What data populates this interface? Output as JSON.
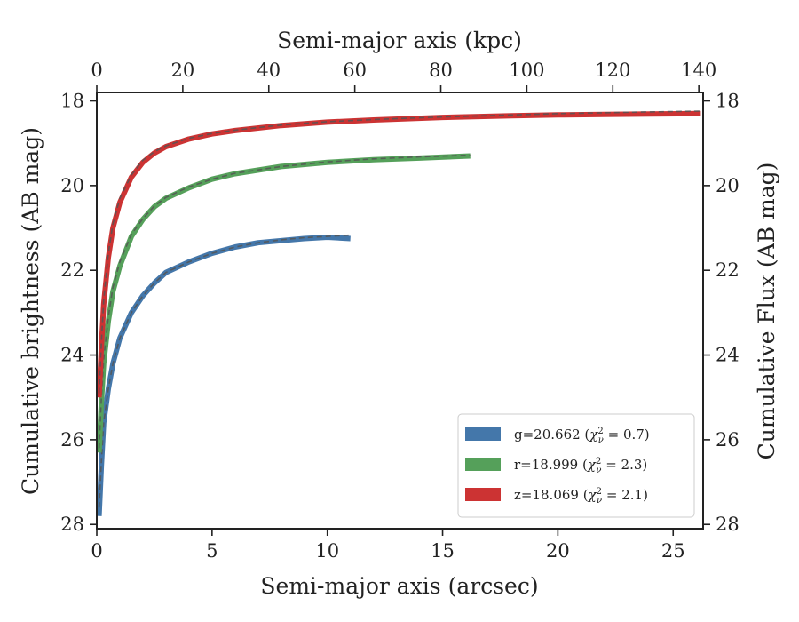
{
  "chart_data": {
    "type": "line",
    "xlabel": "Semi-major axis (arcsec)",
    "ylabel": "Cumulative brightness (AB mag)",
    "top_xlabel": "Semi-major axis (kpc)",
    "right_ylabel": "Cumulative Flux (AB mag)",
    "xlim": [
      0,
      26.3
    ],
    "ylim": [
      28.1,
      17.8
    ],
    "y_inverted": true,
    "top_xlim": [
      0,
      141
    ],
    "xticks": [
      0,
      5,
      10,
      15,
      20,
      25
    ],
    "yticks": [
      18,
      20,
      22,
      24,
      26,
      28
    ],
    "top_xticks": [
      0,
      20,
      40,
      60,
      80,
      100,
      120,
      140
    ],
    "grid": false,
    "legend_position": "lower right",
    "series": [
      {
        "name": "g=20.662 ($\\chi^2_\\nu = 0.7$)",
        "legend": {
          "prefix": "g=20.662 (",
          "chi": "χ",
          "sub": "ν",
          "sup": "2",
          "suffix": " = 0.7)"
        },
        "color": "#4477aa",
        "x": [
          0.1,
          0.2,
          0.3,
          0.5,
          0.7,
          1.0,
          1.5,
          2.0,
          2.5,
          3.0,
          4.0,
          5.0,
          6.0,
          7.0,
          8.0,
          9.0,
          10.0,
          11.0
        ],
        "y": [
          27.8,
          26.6,
          25.6,
          24.8,
          24.2,
          23.6,
          23.0,
          22.6,
          22.3,
          22.05,
          21.8,
          21.6,
          21.45,
          21.35,
          21.3,
          21.25,
          21.22,
          21.25
        ],
        "model_x": [
          0.1,
          0.2,
          0.3,
          0.5,
          0.7,
          1.0,
          1.5,
          2.0,
          2.5,
          3.0,
          4.0,
          5.0,
          6.0,
          7.0,
          8.0,
          9.0,
          10.0,
          11.0
        ],
        "model_y": [
          27.6,
          26.5,
          25.6,
          24.8,
          24.2,
          23.6,
          23.0,
          22.6,
          22.3,
          22.05,
          21.8,
          21.6,
          21.45,
          21.35,
          21.28,
          21.23,
          21.2,
          21.17
        ]
      },
      {
        "name": "r=18.999 ($\\chi^2_\\nu = 2.3$)",
        "legend": {
          "prefix": "r=18.999 (",
          "chi": "χ",
          "sub": "ν",
          "sup": "2",
          "suffix": " = 2.3)"
        },
        "color": "#55a05a",
        "x": [
          0.1,
          0.2,
          0.3,
          0.5,
          0.7,
          1.0,
          1.5,
          2.0,
          2.5,
          3.0,
          4.0,
          5.0,
          6.0,
          8.0,
          10.0,
          12.0,
          14.0,
          16.2
        ],
        "y": [
          26.3,
          25.1,
          24.2,
          23.2,
          22.5,
          21.9,
          21.2,
          20.8,
          20.5,
          20.3,
          20.05,
          19.85,
          19.72,
          19.55,
          19.45,
          19.39,
          19.35,
          19.3
        ],
        "model_x": [
          0.1,
          0.2,
          0.3,
          0.5,
          0.7,
          1.0,
          1.5,
          2.0,
          2.5,
          3.0,
          4.0,
          5.0,
          6.0,
          8.0,
          10.0,
          12.0,
          14.0,
          16.2
        ],
        "model_y": [
          26.2,
          25.0,
          24.1,
          23.1,
          22.4,
          21.8,
          21.15,
          20.78,
          20.48,
          20.28,
          20.03,
          19.85,
          19.71,
          19.55,
          19.44,
          19.37,
          19.32,
          19.28
        ]
      },
      {
        "name": "z=18.069 ($\\chi^2_\\nu = 2.1$)",
        "legend": {
          "prefix": "z=18.069 (",
          "chi": "χ",
          "sub": "ν",
          "sup": "2",
          "suffix": " = 2.1)"
        },
        "color": "#cc3333",
        "x": [
          0.1,
          0.2,
          0.3,
          0.5,
          0.7,
          1.0,
          1.5,
          2.0,
          2.5,
          3.0,
          4.0,
          5.0,
          6.0,
          8.0,
          10.0,
          12.0,
          15.0,
          18.0,
          20.0,
          22.0,
          24.0,
          26.2
        ],
        "y": [
          25.0,
          23.8,
          22.8,
          21.7,
          21.0,
          20.4,
          19.8,
          19.45,
          19.23,
          19.08,
          18.9,
          18.78,
          18.7,
          18.58,
          18.5,
          18.45,
          18.39,
          18.35,
          18.33,
          18.32,
          18.31,
          18.3
        ],
        "model_x": [
          0.1,
          0.2,
          0.3,
          0.5,
          0.7,
          1.0,
          1.5,
          2.0,
          2.5,
          3.0,
          4.0,
          5.0,
          6.0,
          8.0,
          10.0,
          12.0,
          15.0,
          18.0,
          20.0,
          22.0,
          24.0,
          26.2
        ],
        "model_y": [
          24.9,
          23.7,
          22.7,
          21.6,
          20.9,
          20.3,
          19.75,
          19.4,
          19.2,
          19.06,
          18.88,
          18.77,
          18.69,
          18.57,
          18.49,
          18.44,
          18.38,
          18.33,
          18.3,
          18.28,
          18.26,
          18.24
        ]
      }
    ]
  }
}
